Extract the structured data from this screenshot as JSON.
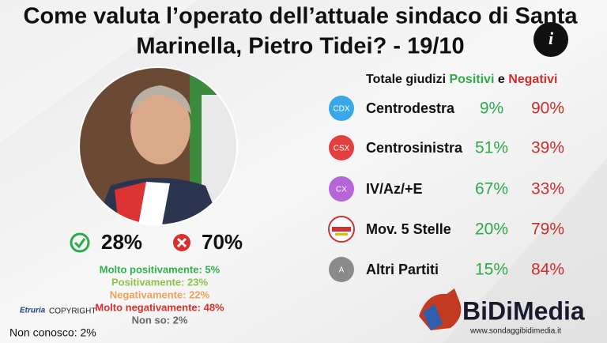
{
  "header": {
    "title_line1": "Come valuta l’operato dell’attuale sindaco di Santa",
    "title_line2": "Marinella, Pietro Tidei? - 19/10",
    "info_icon": "i"
  },
  "summary": {
    "positive": "28%",
    "negative": "70%"
  },
  "breakdown": [
    "Molto positivamente: 5%",
    "Positivamente: 23%",
    "Negativamente: 22%",
    "Molto negativamente: 48%",
    "Non so: 2%"
  ],
  "non_conosco": "Non conosco: 2%",
  "watermark": {
    "brand": "Etruria",
    "text": "COPYRIGHT"
  },
  "table": {
    "header": {
      "prefix": "Totale giudizi",
      "positive": "Positivi",
      "connector": "e",
      "negative": "Negativi"
    },
    "rows": [
      {
        "badge": "CDX",
        "party": "Centrodestra",
        "positive": "9%",
        "negative": "90%"
      },
      {
        "badge": "CSX",
        "party": "Centrosinistra",
        "positive": "51%",
        "negative": "39%"
      },
      {
        "badge": "CX",
        "party": "IV/Az/+E",
        "positive": "67%",
        "negative": "33%"
      },
      {
        "party": "Mov. 5 Stelle",
        "positive": "20%",
        "negative": "79%"
      },
      {
        "badge": "A",
        "party": "Altri Partiti",
        "positive": "15%",
        "negative": "84%"
      }
    ]
  },
  "logo": {
    "name": "BiDiMedia",
    "url": "www.sondaggibidimedia.it"
  }
}
